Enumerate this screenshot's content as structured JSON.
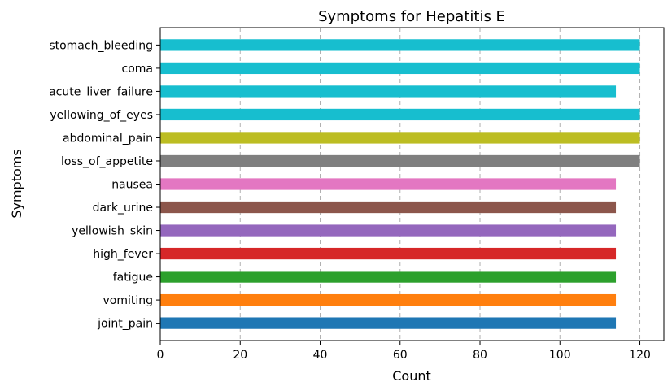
{
  "chart_data": {
    "type": "bar",
    "orientation": "horizontal",
    "title": "Symptoms for Hepatitis E",
    "xlabel": "Count",
    "ylabel": "Symptoms",
    "xlim": [
      0,
      126
    ],
    "xticks": [
      0,
      20,
      40,
      60,
      80,
      100,
      120
    ],
    "grid": "x-dashed",
    "categories": [
      "joint_pain",
      "vomiting",
      "fatigue",
      "high_fever",
      "yellowish_skin",
      "dark_urine",
      "nausea",
      "loss_of_appetite",
      "abdominal_pain",
      "yellowing_of_eyes",
      "acute_liver_failure",
      "coma",
      "stomach_bleeding"
    ],
    "values": [
      114,
      114,
      114,
      114,
      114,
      114,
      114,
      120,
      120,
      120,
      114,
      120,
      120
    ],
    "colors": [
      "#1f77b4",
      "#ff7f0e",
      "#2ca02c",
      "#d62728",
      "#9467bd",
      "#8c564b",
      "#e377c2",
      "#7f7f7f",
      "#bcbd22",
      "#17becf",
      "#17becf",
      "#17becf",
      "#17becf"
    ]
  }
}
